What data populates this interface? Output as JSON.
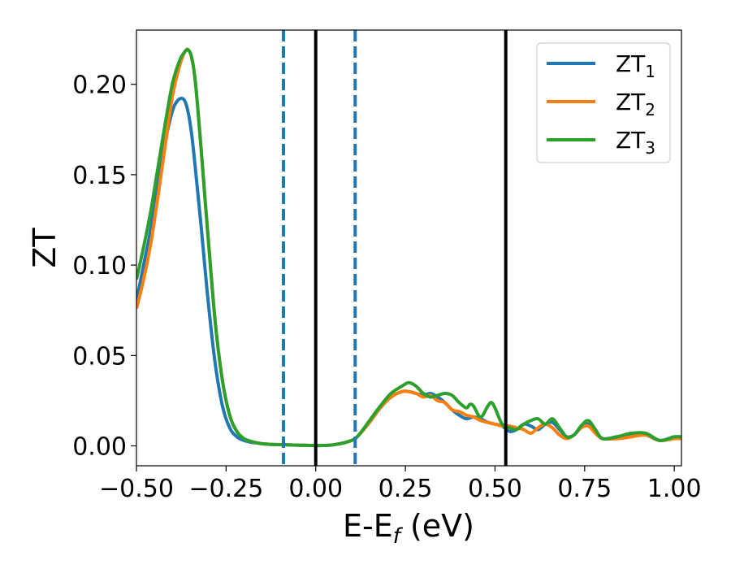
{
  "chart_data": {
    "type": "line",
    "title": "",
    "xlabel": "E-E",
    "xlabel_subscript": "f",
    "xlabel_unit": " (eV)",
    "ylabel": "ZT",
    "xlim": [
      -0.5,
      1.02
    ],
    "ylim": [
      -0.011,
      0.23
    ],
    "grid": false,
    "legend_position": "top-right",
    "x_ticks": [
      {
        "value": -0.5,
        "label": "−0.50"
      },
      {
        "value": -0.25,
        "label": "−0.25"
      },
      {
        "value": 0.0,
        "label": "0.00"
      },
      {
        "value": 0.25,
        "label": "0.25"
      },
      {
        "value": 0.5,
        "label": "0.50"
      },
      {
        "value": 0.75,
        "label": "0.75"
      },
      {
        "value": 1.0,
        "label": "1.00"
      }
    ],
    "y_ticks": [
      {
        "value": 0.0,
        "label": "0.00"
      },
      {
        "value": 0.05,
        "label": "0.05"
      },
      {
        "value": 0.1,
        "label": "0.10"
      },
      {
        "value": 0.15,
        "label": "0.15"
      },
      {
        "value": 0.2,
        "label": "0.20"
      }
    ],
    "vertical_lines": [
      {
        "x": -0.09,
        "style": "dashed",
        "color": "#1f77b4"
      },
      {
        "x": 0.11,
        "style": "dashed",
        "color": "#1f77b4"
      },
      {
        "x": 0.0,
        "style": "solid",
        "color": "#000000"
      },
      {
        "x": 0.53,
        "style": "solid",
        "color": "#000000"
      }
    ],
    "series": [
      {
        "name": "ZT",
        "name_subscript": "1",
        "color": "#1f77b4",
        "x": [
          -0.5,
          -0.48,
          -0.46,
          -0.44,
          -0.42,
          -0.4,
          -0.385,
          -0.37,
          -0.36,
          -0.35,
          -0.34,
          -0.32,
          -0.3,
          -0.28,
          -0.26,
          -0.24,
          -0.22,
          -0.2,
          -0.18,
          -0.16,
          -0.14,
          -0.12,
          -0.1,
          -0.05,
          0.0,
          0.05,
          0.1,
          0.12,
          0.15,
          0.18,
          0.21,
          0.24,
          0.26,
          0.28,
          0.3,
          0.32,
          0.34,
          0.36,
          0.38,
          0.4,
          0.42,
          0.44,
          0.46,
          0.48,
          0.5,
          0.52,
          0.54,
          0.56,
          0.58,
          0.6,
          0.62,
          0.64,
          0.66,
          0.68,
          0.7,
          0.72,
          0.74,
          0.76,
          0.78,
          0.8,
          0.84,
          0.88,
          0.92,
          0.96,
          1.0,
          1.02
        ],
        "y": [
          0.08,
          0.1,
          0.12,
          0.145,
          0.168,
          0.185,
          0.191,
          0.192,
          0.188,
          0.178,
          0.162,
          0.122,
          0.08,
          0.045,
          0.022,
          0.01,
          0.005,
          0.003,
          0.002,
          0.0015,
          0.001,
          0.0008,
          0.0007,
          0.0004,
          0.0002,
          0.0006,
          0.003,
          0.006,
          0.013,
          0.021,
          0.027,
          0.03,
          0.03,
          0.029,
          0.028,
          0.029,
          0.027,
          0.024,
          0.02,
          0.017,
          0.015,
          0.016,
          0.015,
          0.013,
          0.012,
          0.011,
          0.008,
          0.009,
          0.012,
          0.011,
          0.009,
          0.012,
          0.013,
          0.009,
          0.005,
          0.006,
          0.01,
          0.012,
          0.008,
          0.004,
          0.005,
          0.006,
          0.006,
          0.003,
          0.005,
          0.004
        ]
      },
      {
        "name": "ZT",
        "name_subscript": "2",
        "color": "#ff7f0e",
        "x": [
          -0.5,
          -0.48,
          -0.46,
          -0.44,
          -0.42,
          -0.4,
          -0.38,
          -0.365,
          -0.355,
          -0.345,
          -0.335,
          -0.32,
          -0.3,
          -0.28,
          -0.26,
          -0.24,
          -0.22,
          -0.2,
          -0.18,
          -0.16,
          -0.14,
          -0.12,
          -0.1,
          -0.05,
          0.0,
          0.05,
          0.1,
          0.12,
          0.15,
          0.18,
          0.21,
          0.24,
          0.26,
          0.28,
          0.3,
          0.32,
          0.34,
          0.36,
          0.38,
          0.4,
          0.42,
          0.44,
          0.46,
          0.48,
          0.5,
          0.52,
          0.54,
          0.56,
          0.58,
          0.6,
          0.62,
          0.64,
          0.66,
          0.68,
          0.7,
          0.72,
          0.74,
          0.76,
          0.78,
          0.8,
          0.84,
          0.88,
          0.92,
          0.96,
          1.0,
          1.02
        ],
        "y": [
          0.076,
          0.092,
          0.112,
          0.138,
          0.166,
          0.193,
          0.21,
          0.218,
          0.219,
          0.214,
          0.2,
          0.165,
          0.115,
          0.068,
          0.036,
          0.017,
          0.008,
          0.004,
          0.0025,
          0.0015,
          0.001,
          0.0008,
          0.0007,
          0.0004,
          0.0002,
          0.0006,
          0.003,
          0.006,
          0.013,
          0.021,
          0.027,
          0.03,
          0.03,
          0.029,
          0.027,
          0.028,
          0.025,
          0.024,
          0.02,
          0.019,
          0.017,
          0.016,
          0.014,
          0.013,
          0.012,
          0.011,
          0.011,
          0.01,
          0.009,
          0.007,
          0.01,
          0.012,
          0.01,
          0.006,
          0.004,
          0.006,
          0.01,
          0.011,
          0.007,
          0.004,
          0.004,
          0.005,
          0.006,
          0.003,
          0.004,
          0.004
        ]
      },
      {
        "name": "ZT",
        "name_subscript": "3",
        "color": "#2ca02c",
        "x": [
          -0.5,
          -0.48,
          -0.46,
          -0.44,
          -0.42,
          -0.4,
          -0.38,
          -0.365,
          -0.355,
          -0.345,
          -0.335,
          -0.32,
          -0.3,
          -0.28,
          -0.26,
          -0.24,
          -0.22,
          -0.2,
          -0.18,
          -0.16,
          -0.14,
          -0.12,
          -0.1,
          -0.05,
          0.0,
          0.05,
          0.1,
          0.12,
          0.15,
          0.18,
          0.21,
          0.24,
          0.26,
          0.28,
          0.3,
          0.32,
          0.34,
          0.36,
          0.38,
          0.4,
          0.42,
          0.43,
          0.44,
          0.46,
          0.48,
          0.49,
          0.5,
          0.52,
          0.54,
          0.56,
          0.58,
          0.6,
          0.62,
          0.64,
          0.66,
          0.68,
          0.7,
          0.72,
          0.74,
          0.76,
          0.78,
          0.8,
          0.84,
          0.88,
          0.92,
          0.96,
          1.0,
          1.02
        ],
        "y": [
          0.092,
          0.11,
          0.13,
          0.154,
          0.178,
          0.2,
          0.213,
          0.218,
          0.219,
          0.214,
          0.2,
          0.165,
          0.115,
          0.068,
          0.036,
          0.017,
          0.008,
          0.004,
          0.0025,
          0.0015,
          0.001,
          0.0008,
          0.0007,
          0.0004,
          0.0002,
          0.0006,
          0.003,
          0.006,
          0.014,
          0.022,
          0.029,
          0.033,
          0.035,
          0.033,
          0.029,
          0.027,
          0.028,
          0.029,
          0.028,
          0.024,
          0.021,
          0.023,
          0.022,
          0.016,
          0.022,
          0.024,
          0.021,
          0.012,
          0.01,
          0.009,
          0.012,
          0.014,
          0.015,
          0.012,
          0.015,
          0.01,
          0.005,
          0.006,
          0.011,
          0.014,
          0.009,
          0.004,
          0.005,
          0.007,
          0.007,
          0.003,
          0.005,
          0.005
        ]
      }
    ]
  }
}
